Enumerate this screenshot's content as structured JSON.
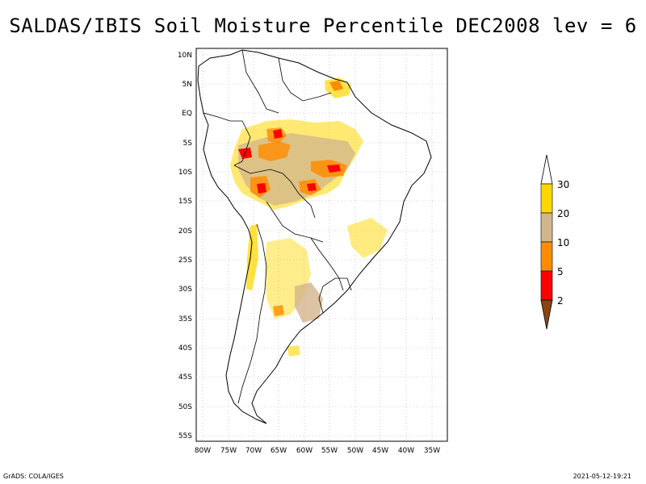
{
  "title": "SALDAS/IBIS Soil Moisture Percentile DEC2008 lev = 6",
  "map": {
    "lat_ticks": [
      "10N",
      "5N",
      "EQ",
      "5S",
      "10S",
      "15S",
      "20S",
      "25S",
      "30S",
      "35S",
      "40S",
      "45S",
      "50S",
      "55S"
    ],
    "lon_ticks": [
      "80W",
      "75W",
      "70W",
      "65W",
      "60W",
      "55W",
      "50W",
      "45W",
      "40W",
      "35W"
    ],
    "lon_range": [
      -81,
      -32
    ],
    "lat_range": [
      -56,
      11
    ]
  },
  "colorbar": {
    "levels": [
      "30",
      "20",
      "10",
      "5",
      "2"
    ],
    "colors": {
      "above30": "#ffffff",
      "c20_30": "#ffd700",
      "c10_20": "#d2b48c",
      "c5_10": "#ff8c00",
      "c2_5": "#ff0000",
      "below2": "#8b4513"
    }
  },
  "footer": {
    "left": "GrADS: COLA/IGES",
    "right": "2021-05-12-19:21"
  }
}
